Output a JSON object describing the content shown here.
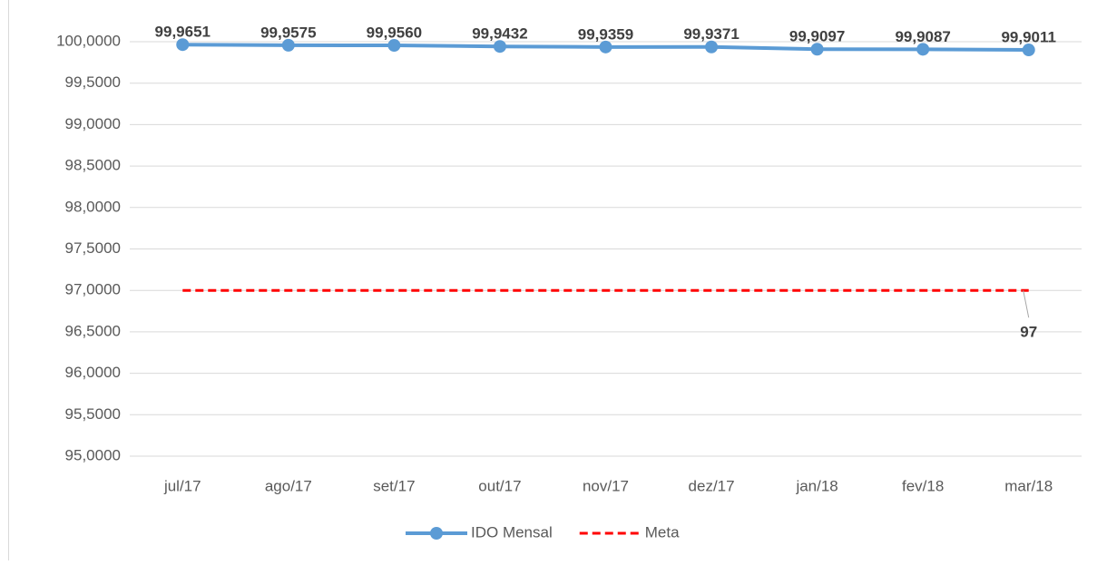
{
  "chart_data": {
    "type": "line",
    "categories": [
      "jul/17",
      "ago/17",
      "set/17",
      "out/17",
      "nov/17",
      "dez/17",
      "jan/18",
      "fev/18",
      "mar/18"
    ],
    "series": [
      {
        "name": "IDO Mensal",
        "color": "#5b9bd5",
        "values": [
          99.9651,
          99.9575,
          99.956,
          99.9432,
          99.9359,
          99.9371,
          99.9097,
          99.9087,
          99.9011
        ],
        "value_labels": [
          "99,9651",
          "99,9575",
          "99,9560",
          "99,9432",
          "99,9359",
          "99,9371",
          "99,9097",
          "99,9087",
          "99,9011"
        ]
      },
      {
        "name": "Meta",
        "color": "#ff0000",
        "dashed": true,
        "values": [
          97,
          97,
          97,
          97,
          97,
          97,
          97,
          97,
          97
        ],
        "value_labels": [
          null,
          null,
          null,
          null,
          null,
          null,
          null,
          null,
          "97"
        ]
      }
    ],
    "ylim": [
      95,
      100
    ],
    "yticks": [
      {
        "value": 95,
        "label": "95,0000"
      },
      {
        "value": 95.5,
        "label": "95,5000"
      },
      {
        "value": 96,
        "label": "96,0000"
      },
      {
        "value": 96.5,
        "label": "96,5000"
      },
      {
        "value": 97,
        "label": "97,0000"
      },
      {
        "value": 97.5,
        "label": "97,5000"
      },
      {
        "value": 98,
        "label": "98,0000"
      },
      {
        "value": 98.5,
        "label": "98,5000"
      },
      {
        "value": 99,
        "label": "99,0000"
      },
      {
        "value": 99.5,
        "label": "99,5000"
      },
      {
        "value": 100,
        "label": "100,0000"
      }
    ],
    "grid": true,
    "legend": "bottom"
  }
}
